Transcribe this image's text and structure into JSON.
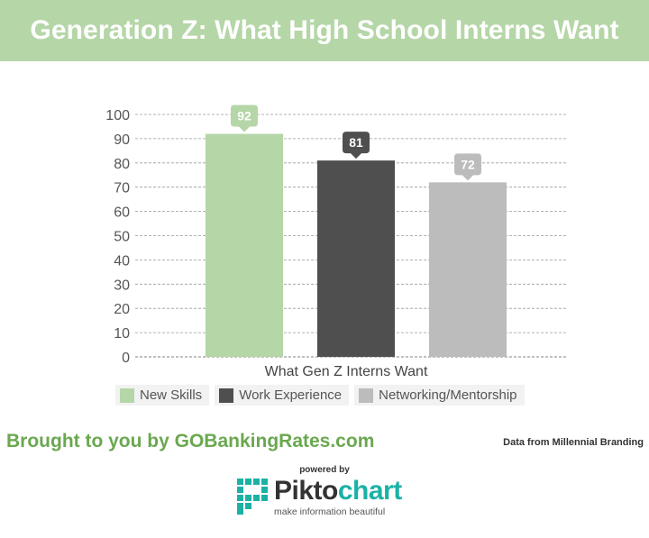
{
  "header": {
    "title": "Generation Z: What High School Interns Want"
  },
  "chart_data": {
    "type": "bar",
    "categories": [
      "What Gen Z Interns Want"
    ],
    "xlabel": "What Gen Z Interns Want",
    "ylabel": "",
    "ylim": [
      0,
      100
    ],
    "yticks": [
      "0",
      "10",
      "20",
      "30",
      "40",
      "50",
      "60",
      "70",
      "80",
      "90",
      "100"
    ],
    "grid": true,
    "legend_position": "bottom",
    "series": [
      {
        "name": "New Skills",
        "values": [
          92
        ],
        "value_label": "92",
        "color": "#b5d6a7"
      },
      {
        "name": "Work Experience",
        "values": [
          81
        ],
        "value_label": "81",
        "color": "#4f4f4f"
      },
      {
        "name": "Networking/Mentorship",
        "values": [
          72
        ],
        "value_label": "72",
        "color": "#bcbcbc"
      }
    ]
  },
  "footer": {
    "brought": "Brought to you by GOBankingRates.com",
    "source": "Data from Millennial Branding",
    "powered": "powered by",
    "logo_word_a": "Pikto",
    "logo_word_b": "chart",
    "logo_tagline": "make information beautiful",
    "logo_color": "#1bb2a5"
  }
}
